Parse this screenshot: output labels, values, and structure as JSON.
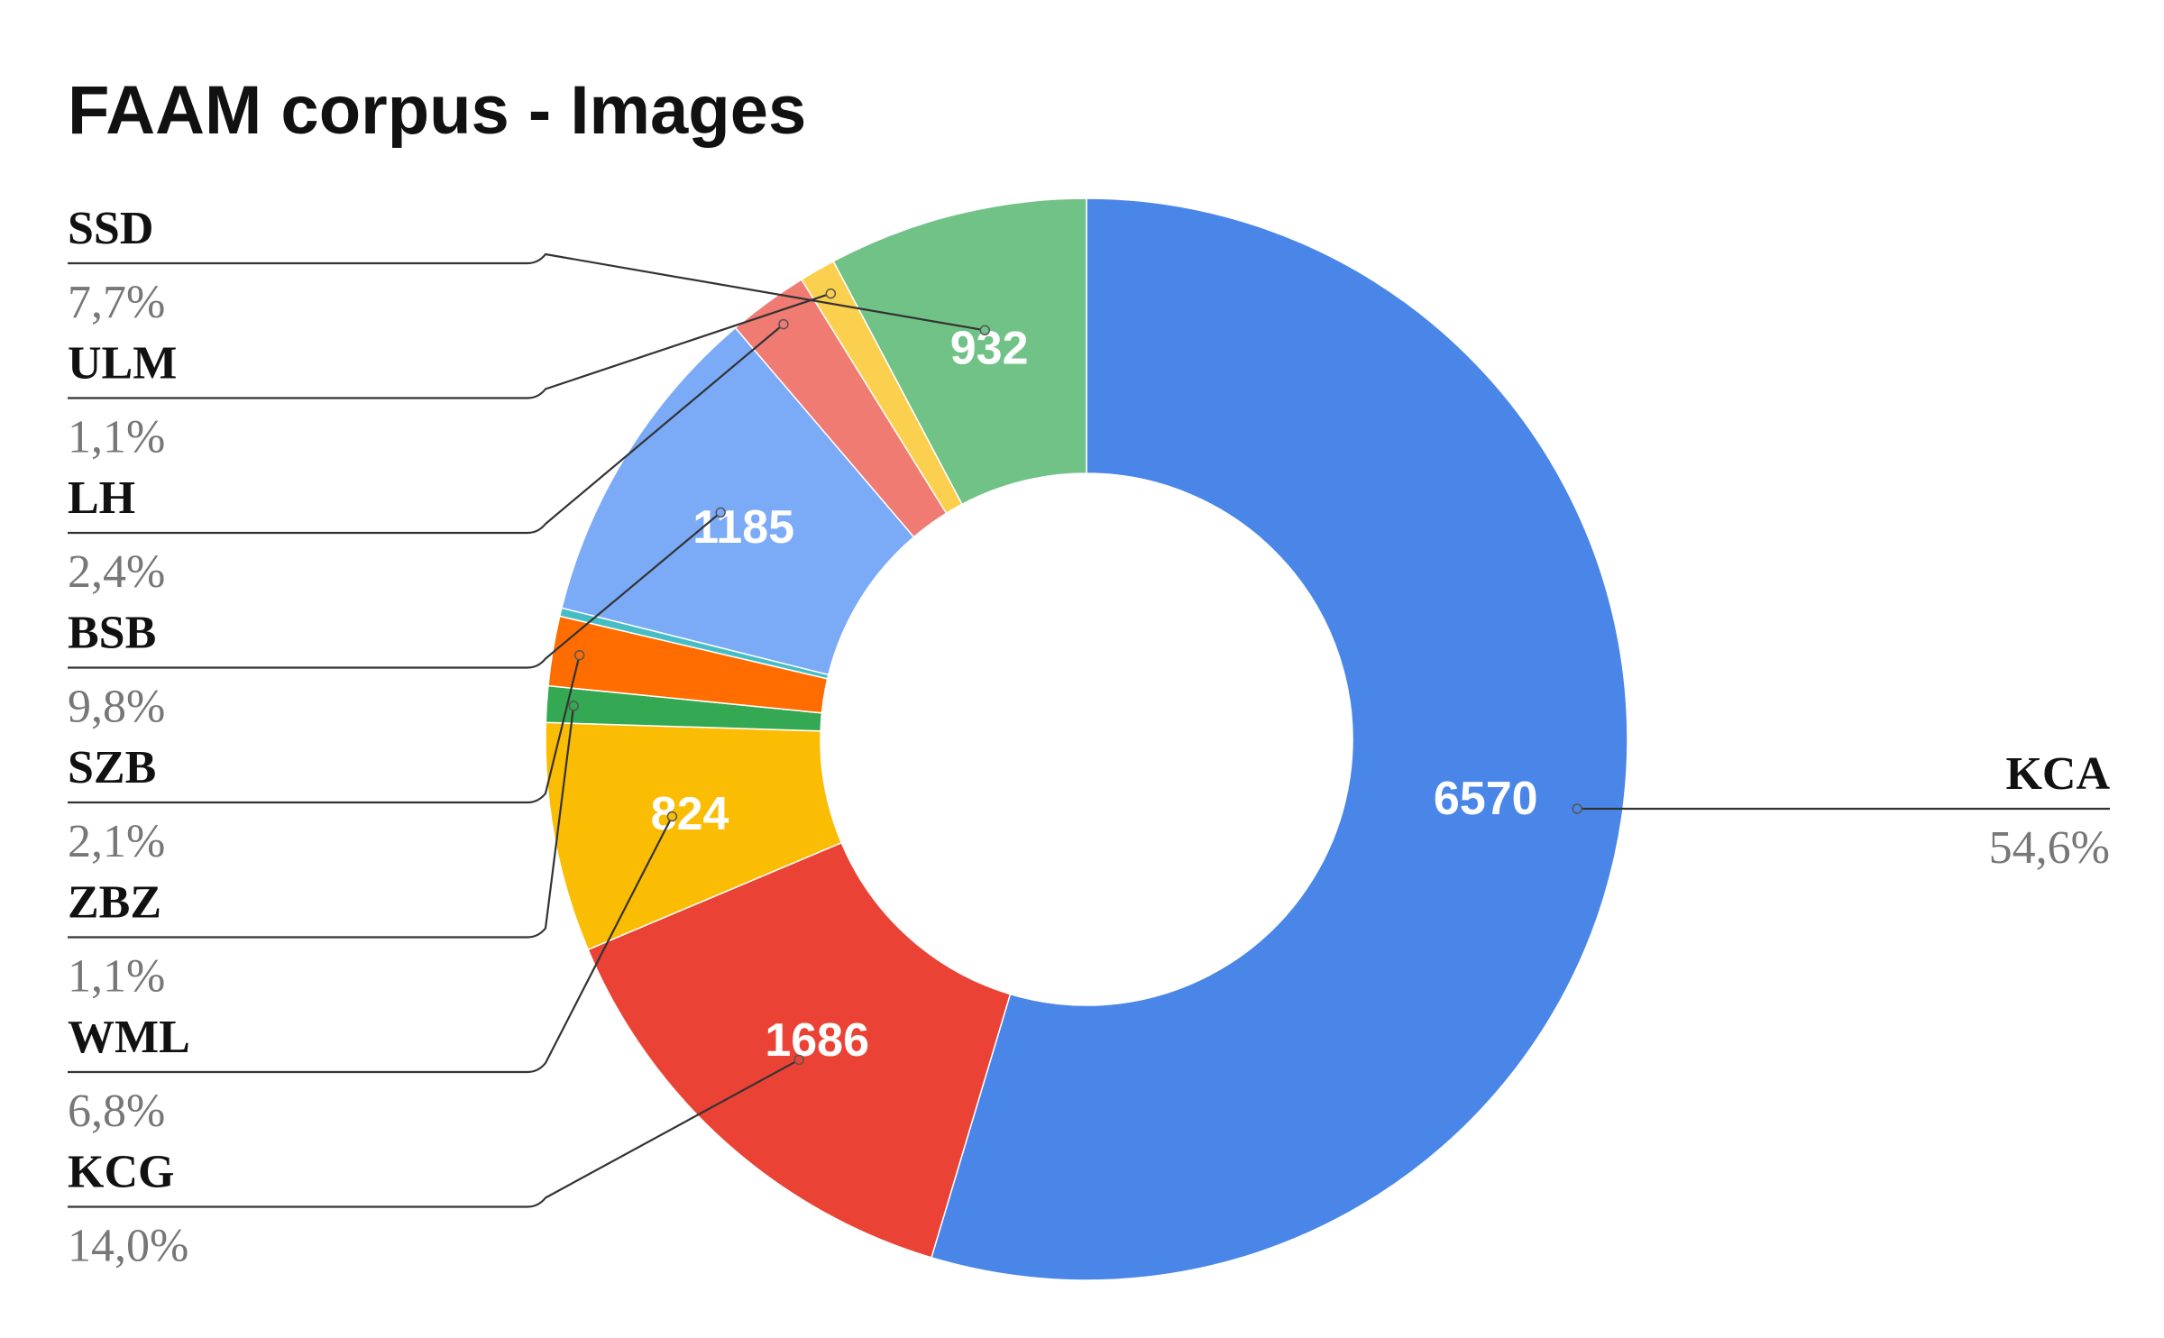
{
  "chart_data": {
    "type": "pie",
    "donut": true,
    "title": "FAAM corpus - Images",
    "slices": [
      {
        "label": "KCA",
        "value": 6570,
        "value_label": "6570",
        "percent_label": "54,6%",
        "color": "#4a86e8"
      },
      {
        "label": "KCG",
        "value": 1686,
        "value_label": "1686",
        "percent_label": "14,0%",
        "color": "#ea4335"
      },
      {
        "label": "WML",
        "value": 824,
        "value_label": "824",
        "percent_label": "6,8%",
        "color": "#fbbc04"
      },
      {
        "label": "ZBZ",
        "value": 130,
        "value_label": "",
        "percent_label": "1,1%",
        "color": "#34a853"
      },
      {
        "label": "SZB",
        "value": 250,
        "value_label": "",
        "percent_label": "2,1%",
        "color": "#ff6d01"
      },
      {
        "label": "",
        "value": 30,
        "value_label": "",
        "percent_label": "",
        "color": "#46bdc6"
      },
      {
        "label": "BSB",
        "value": 1185,
        "value_label": "1185",
        "percent_label": "9,8%",
        "color": "#7baaf7"
      },
      {
        "label": "LH",
        "value": 290,
        "value_label": "",
        "percent_label": "2,4%",
        "color": "#f07b72"
      },
      {
        "label": "ULM",
        "value": 130,
        "value_label": "",
        "percent_label": "1,1%",
        "color": "#fcd04f"
      },
      {
        "label": "SSD",
        "value": 932,
        "value_label": "932",
        "percent_label": "7,7%",
        "color": "#71c287"
      }
    ]
  }
}
